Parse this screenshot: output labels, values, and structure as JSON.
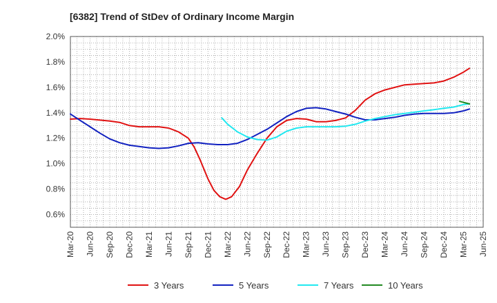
{
  "chart_data": {
    "type": "line",
    "title": "[6382]  Trend of StDev of Ordinary Income Margin",
    "xlabel": "",
    "ylabel": "",
    "ylim": [
      0.5,
      2.0
    ],
    "y_ticks": [
      "0.6%",
      "0.8%",
      "1.0%",
      "1.2%",
      "1.4%",
      "1.6%",
      "1.8%",
      "2.0%"
    ],
    "y_tick_values": [
      0.6,
      0.8,
      1.0,
      1.2,
      1.4,
      1.6,
      1.8,
      2.0
    ],
    "x_ticks": [
      "Mar-20",
      "Jun-20",
      "Sep-20",
      "Dec-20",
      "Mar-21",
      "Jun-21",
      "Sep-21",
      "Dec-21",
      "Mar-22",
      "Jun-22",
      "Sep-22",
      "Dec-22",
      "Mar-23",
      "Jun-23",
      "Sep-23",
      "Dec-23",
      "Mar-24",
      "Jun-24",
      "Sep-24",
      "Dec-24",
      "Mar-25",
      "Jun-25"
    ],
    "grid": true,
    "legend_position": "bottom",
    "x_unit": "quarter index from Mar-20",
    "series": [
      {
        "name": "3 Years",
        "color": "#e01010",
        "points": [
          [
            0,
            1.35
          ],
          [
            0.5,
            1.355
          ],
          [
            1,
            1.35
          ],
          [
            2,
            1.335
          ],
          [
            2.5,
            1.325
          ],
          [
            3,
            1.3
          ],
          [
            3.5,
            1.29
          ],
          [
            4,
            1.29
          ],
          [
            4.5,
            1.29
          ],
          [
            5,
            1.28
          ],
          [
            5.5,
            1.25
          ],
          [
            6,
            1.2
          ],
          [
            6.3,
            1.13
          ],
          [
            6.6,
            1.03
          ],
          [
            7,
            0.88
          ],
          [
            7.3,
            0.79
          ],
          [
            7.6,
            0.74
          ],
          [
            7.9,
            0.72
          ],
          [
            8.2,
            0.74
          ],
          [
            8.6,
            0.82
          ],
          [
            9,
            0.95
          ],
          [
            9.5,
            1.08
          ],
          [
            10,
            1.2
          ],
          [
            10.5,
            1.29
          ],
          [
            11,
            1.34
          ],
          [
            11.5,
            1.355
          ],
          [
            12,
            1.35
          ],
          [
            12.5,
            1.33
          ],
          [
            13,
            1.33
          ],
          [
            13.5,
            1.34
          ],
          [
            14,
            1.36
          ],
          [
            14.5,
            1.42
          ],
          [
            15,
            1.5
          ],
          [
            15.5,
            1.55
          ],
          [
            16,
            1.58
          ],
          [
            16.5,
            1.6
          ],
          [
            17,
            1.62
          ],
          [
            17.5,
            1.625
          ],
          [
            18,
            1.63
          ],
          [
            18.5,
            1.635
          ],
          [
            19,
            1.65
          ],
          [
            19.5,
            1.68
          ],
          [
            20,
            1.72
          ],
          [
            20.3,
            1.75
          ]
        ]
      },
      {
        "name": "5 Years",
        "color": "#1020c0",
        "points": [
          [
            0,
            1.39
          ],
          [
            0.5,
            1.34
          ],
          [
            1,
            1.29
          ],
          [
            1.5,
            1.24
          ],
          [
            2,
            1.195
          ],
          [
            2.5,
            1.165
          ],
          [
            3,
            1.145
          ],
          [
            3.5,
            1.135
          ],
          [
            4,
            1.125
          ],
          [
            4.5,
            1.12
          ],
          [
            5,
            1.125
          ],
          [
            5.5,
            1.14
          ],
          [
            6,
            1.16
          ],
          [
            6.5,
            1.165
          ],
          [
            7,
            1.155
          ],
          [
            7.5,
            1.15
          ],
          [
            8,
            1.15
          ],
          [
            8.5,
            1.16
          ],
          [
            9,
            1.19
          ],
          [
            9.5,
            1.23
          ],
          [
            10,
            1.27
          ],
          [
            10.5,
            1.32
          ],
          [
            11,
            1.37
          ],
          [
            11.5,
            1.41
          ],
          [
            12,
            1.435
          ],
          [
            12.5,
            1.44
          ],
          [
            13,
            1.43
          ],
          [
            13.5,
            1.41
          ],
          [
            14,
            1.39
          ],
          [
            14.5,
            1.365
          ],
          [
            15,
            1.345
          ],
          [
            15.5,
            1.345
          ],
          [
            16,
            1.355
          ],
          [
            16.5,
            1.365
          ],
          [
            17,
            1.38
          ],
          [
            17.5,
            1.39
          ],
          [
            18,
            1.395
          ],
          [
            18.5,
            1.395
          ],
          [
            19,
            1.395
          ],
          [
            19.5,
            1.4
          ],
          [
            20,
            1.415
          ],
          [
            20.3,
            1.43
          ]
        ]
      },
      {
        "name": "7 Years",
        "color": "#20e8f0",
        "points": [
          [
            7.7,
            1.36
          ],
          [
            8,
            1.31
          ],
          [
            8.5,
            1.25
          ],
          [
            9,
            1.21
          ],
          [
            9.5,
            1.19
          ],
          [
            10,
            1.185
          ],
          [
            10.5,
            1.21
          ],
          [
            11,
            1.255
          ],
          [
            11.5,
            1.28
          ],
          [
            12,
            1.29
          ],
          [
            12.5,
            1.29
          ],
          [
            13,
            1.29
          ],
          [
            13.5,
            1.29
          ],
          [
            14,
            1.295
          ],
          [
            14.5,
            1.31
          ],
          [
            15,
            1.335
          ],
          [
            15.5,
            1.355
          ],
          [
            16,
            1.37
          ],
          [
            16.5,
            1.385
          ],
          [
            17,
            1.395
          ],
          [
            17.5,
            1.405
          ],
          [
            18,
            1.415
          ],
          [
            18.5,
            1.425
          ],
          [
            19,
            1.435
          ],
          [
            19.5,
            1.445
          ],
          [
            20,
            1.465
          ],
          [
            20.3,
            1.47
          ]
        ]
      },
      {
        "name": "10 Years",
        "color": "#208820",
        "points": [
          [
            19.8,
            1.49
          ],
          [
            20.3,
            1.47
          ]
        ]
      }
    ]
  }
}
